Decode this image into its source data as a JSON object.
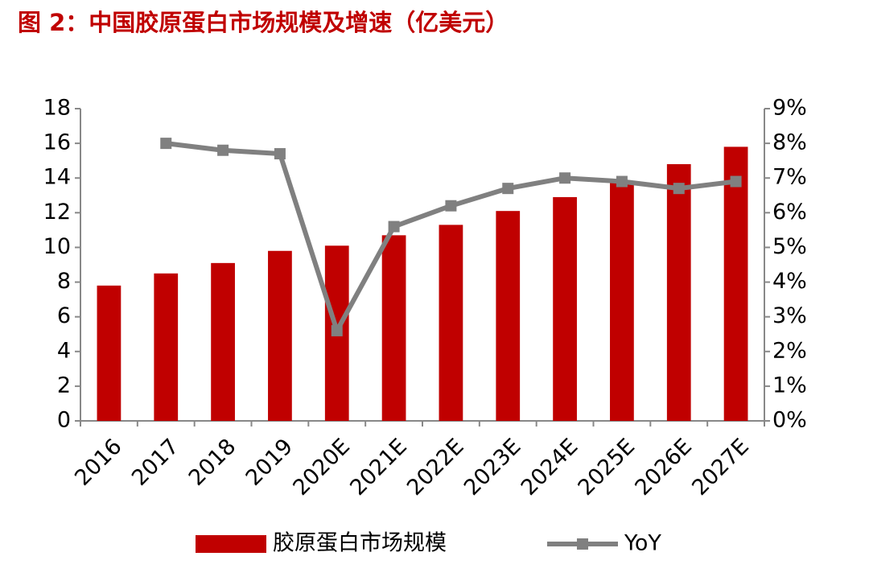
{
  "chart_data": {
    "type": "bar-line",
    "title": "图 2：中国胶原蛋白市场规模及增速（亿美元）",
    "categories": [
      "2016",
      "2017",
      "2018",
      "2019",
      "2020E",
      "2021E",
      "2022E",
      "2023E",
      "2024E",
      "2025E",
      "2026E",
      "2027E"
    ],
    "series": [
      {
        "name": "胶原蛋白市场规模",
        "type": "bar",
        "color": "#c00000",
        "values": [
          7.8,
          8.5,
          9.1,
          9.8,
          10.1,
          10.7,
          11.3,
          12.1,
          12.9,
          13.8,
          14.8,
          15.8
        ]
      },
      {
        "name": "YoY",
        "type": "line",
        "axis": "y2",
        "color": "#808080",
        "values": [
          null,
          8.0,
          7.8,
          7.7,
          2.6,
          5.6,
          6.2,
          6.7,
          7.0,
          6.9,
          6.7,
          6.9
        ]
      }
    ],
    "ylim": [
      0,
      18
    ],
    "yticks": [
      0,
      2,
      4,
      6,
      8,
      10,
      12,
      14,
      16,
      18
    ],
    "y2lim": [
      0,
      9
    ],
    "y2ticks": [
      {
        "value": 0,
        "label": "0%"
      },
      {
        "value": 1,
        "label": "1%"
      },
      {
        "value": 2,
        "label": "2%"
      },
      {
        "value": 3,
        "label": "3%"
      },
      {
        "value": 4,
        "label": "4%"
      },
      {
        "value": 5,
        "label": "5%"
      },
      {
        "value": 6,
        "label": "6%"
      },
      {
        "value": 7,
        "label": "7%"
      },
      {
        "value": 8,
        "label": "8%"
      },
      {
        "value": 9,
        "label": "9%"
      }
    ],
    "legend": "bottom"
  }
}
